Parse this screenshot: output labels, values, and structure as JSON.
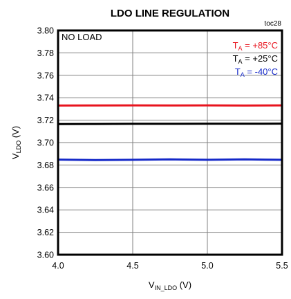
{
  "chart_data": {
    "type": "line",
    "title": "LDO LINE REGULATION",
    "figure_id": "toc28",
    "annotation": "NO LOAD",
    "xlabel": {
      "main": "V",
      "sub": "IN_LDO",
      "unit": " (V)"
    },
    "ylabel": {
      "main": "V",
      "sub": "LDO",
      "unit": " (V)"
    },
    "xlim": [
      4.0,
      5.5
    ],
    "ylim": [
      3.6,
      3.8
    ],
    "x_ticks": [
      4.0,
      4.5,
      5.0,
      5.5
    ],
    "x_tick_labels": [
      "4.0",
      "4.5",
      "5.0",
      "5.5"
    ],
    "y_ticks": [
      3.6,
      3.62,
      3.64,
      3.66,
      3.68,
      3.7,
      3.72,
      3.74,
      3.76,
      3.78,
      3.8
    ],
    "y_tick_labels": [
      "3.60",
      "3.62",
      "3.64",
      "3.66",
      "3.68",
      "3.70",
      "3.72",
      "3.74",
      "3.76",
      "3.78",
      "3.80"
    ],
    "grid": true,
    "legend_placement": "top-right",
    "series": [
      {
        "label_main": "T",
        "label_sub": "A",
        "label_rest": " = +85°C",
        "color": "#e8141e",
        "x": [
          4.0,
          4.25,
          4.5,
          4.75,
          5.0,
          5.25,
          5.5
        ],
        "y": [
          3.733,
          3.7331,
          3.7332,
          3.7331,
          3.7332,
          3.733,
          3.7332
        ]
      },
      {
        "label_main": "T",
        "label_sub": "A",
        "label_rest": " = +25°C",
        "color": "#000000",
        "x": [
          4.0,
          4.25,
          4.5,
          4.75,
          5.0,
          5.25,
          5.5
        ],
        "y": [
          3.7165,
          3.7166,
          3.7167,
          3.7167,
          3.7168,
          3.7168,
          3.7169
        ]
      },
      {
        "label_main": "T",
        "label_sub": "A",
        "label_rest": " = -40°C",
        "color": "#1428c8",
        "x": [
          4.0,
          4.25,
          4.5,
          4.75,
          5.0,
          5.25,
          5.5
        ],
        "y": [
          3.6848,
          3.6844,
          3.6846,
          3.685,
          3.6846,
          3.685,
          3.6846
        ]
      }
    ]
  }
}
